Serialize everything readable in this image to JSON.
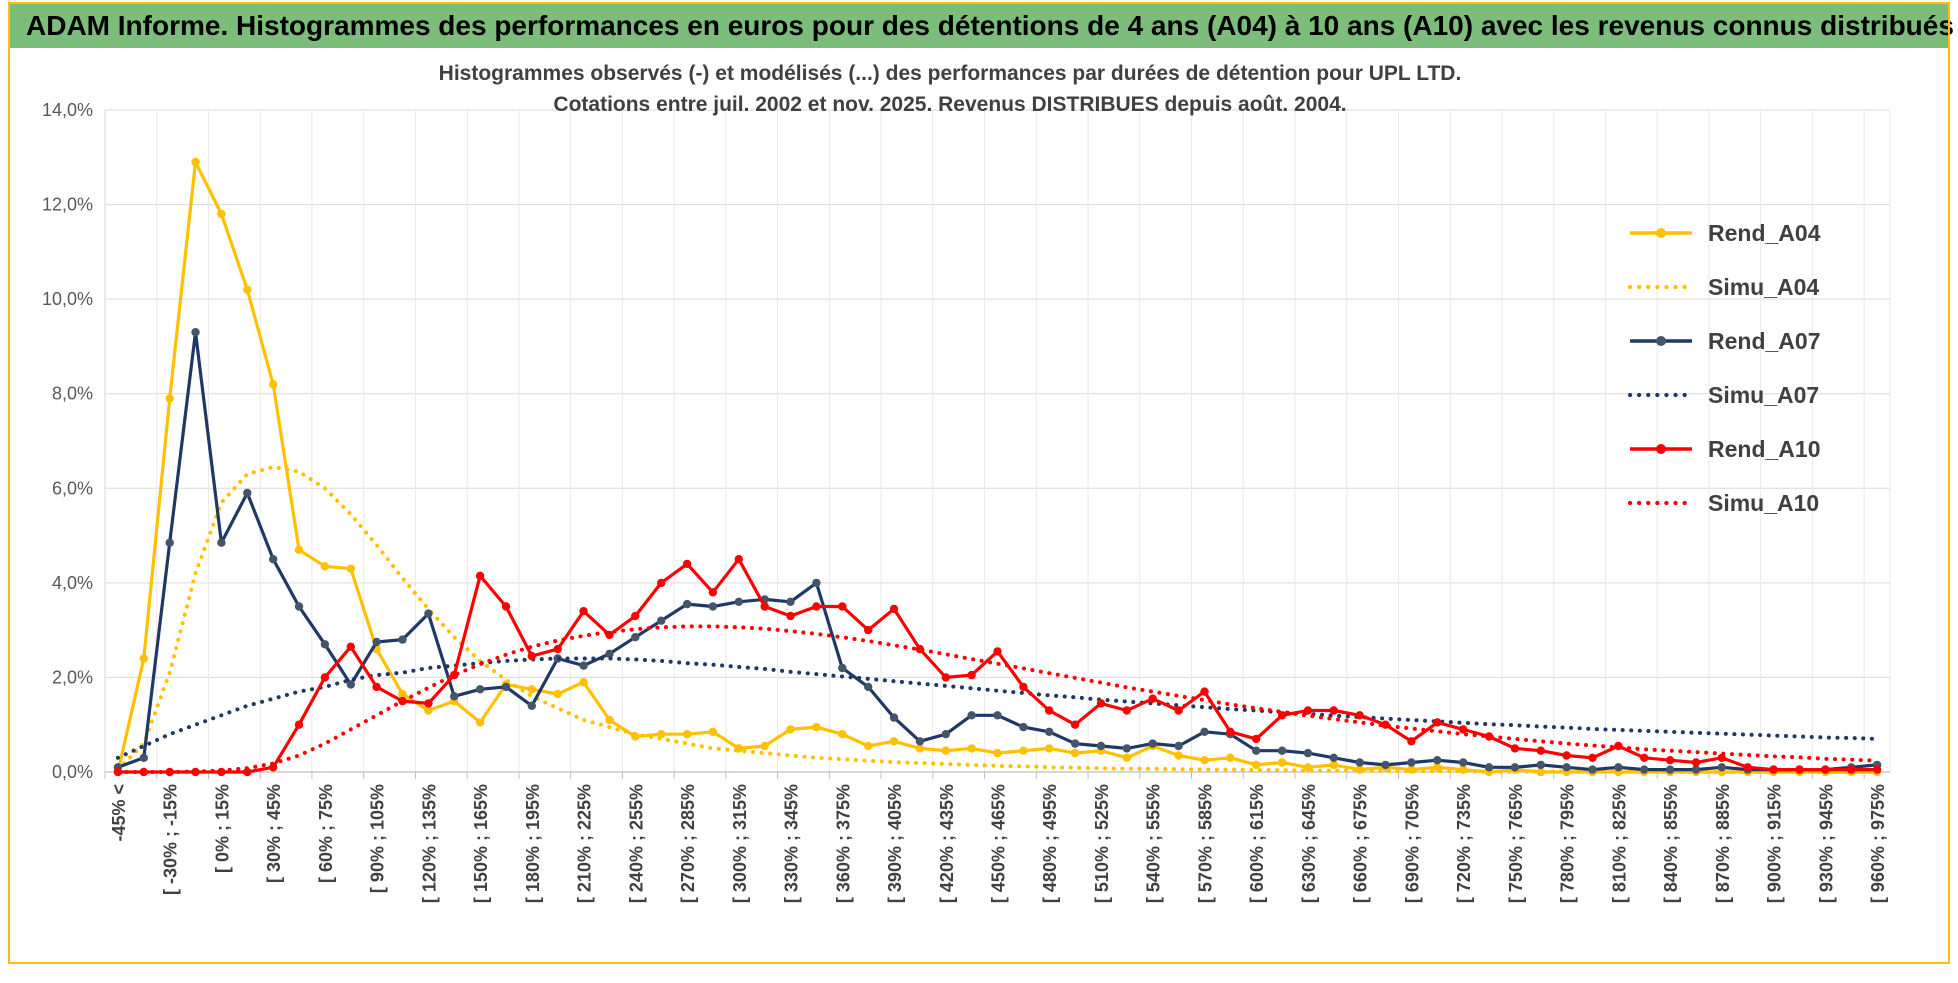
{
  "header": {
    "title": "ADAM Informe. Histogrammes des performances en euros pour des détentions de 4 ans (A04) à 10 ans (A10) avec les revenus connus distribués"
  },
  "colors": {
    "header_bg": "#7CBD7C",
    "header_text": "#000000",
    "frame": "#FFC000",
    "grid": "#D9D9D9",
    "grid_vertical": "#E9E9E9",
    "axis": "#BFBFBF",
    "tick_text": "#595959",
    "x_label_text": "#404040",
    "title_text": "#404040",
    "gold": "#FFC000",
    "navy": "#1F3864",
    "red": "#FF0000"
  },
  "chart_data": {
    "type": "line",
    "title_line1": "Histogrammes observés (-) et modélisés (...) des performances par durées de détention pour UPL LTD.",
    "title_line2": "Cotations entre juil. 2002 et nov. 2025. Revenus DISTRIBUES depuis août. 2004.",
    "ylim": [
      0,
      14
    ],
    "y_ticks": [
      "0,0%",
      "2,0%",
      "4,0%",
      "6,0%",
      "8,0%",
      "10,0%",
      "12,0%",
      "14,0%"
    ],
    "grid": true,
    "legend_position": "right-inside",
    "n_bins": 69,
    "label_every": 2,
    "bin_width_note": "15% wide performance bins, one x tick label every second bin",
    "x_tick_labels": [
      "-45% <",
      "[ -30% ; -15%",
      "[ 0% ; 15%",
      "[ 30% ; 45%",
      "[ 60% ; 75%",
      "[ 90% ; 105%",
      "[ 120% ; 135%",
      "[ 150% ; 165%",
      "[ 180% ; 195%",
      "[ 210% ; 225%",
      "[ 240% ; 255%",
      "[ 270% ; 285%",
      "[ 300% ; 315%",
      "[ 330% ; 345%",
      "[ 360% ; 375%",
      "[ 390% ; 405%",
      "[ 420% ; 435%",
      "[ 450% ; 465%",
      "[ 480% ; 495%",
      "[ 510% ; 525%",
      "[ 540% ; 555%",
      "[ 570% ; 585%",
      "[ 600% ; 615%",
      "[ 630% ; 645%",
      "[ 660% ; 675%",
      "[ 690% ; 705%",
      "[ 720% ; 735%",
      "[ 750% ; 765%",
      "[ 780% ; 795%",
      "[ 810% ; 825%",
      "[ 840% ; 855%",
      "[ 870% ; 885%",
      "[ 900% ; 915%",
      "[ 930% ; 945%",
      "[ 960% ; 975%"
    ],
    "series": [
      {
        "name": "Rend_A04",
        "style": "solid",
        "marker": true,
        "color": "#FFC000",
        "marker_color": "#FFC000",
        "values": [
          0,
          2.4,
          7.9,
          12.9,
          11.8,
          10.2,
          8.2,
          4.7,
          4.35,
          4.3,
          2.6,
          1.65,
          1.3,
          1.5,
          1.05,
          1.85,
          1.75,
          1.65,
          1.9,
          1.1,
          0.75,
          0.8,
          0.8,
          0.85,
          0.5,
          0.55,
          0.9,
          0.95,
          0.8,
          0.55,
          0.65,
          0.5,
          0.45,
          0.5,
          0.4,
          0.45,
          0.5,
          0.4,
          0.45,
          0.3,
          0.55,
          0.35,
          0.25,
          0.3,
          0.15,
          0.2,
          0.1,
          0.15,
          0.05,
          0.1,
          0.05,
          0.1,
          0.05,
          0,
          0.05,
          0,
          0,
          0,
          0,
          0,
          0,
          0,
          0,
          0,
          0,
          0,
          0,
          0,
          0
        ]
      },
      {
        "name": "Simu_A04",
        "style": "dotted",
        "marker": false,
        "color": "#FFC000",
        "marker_color": "#FFC000",
        "values": [
          0.05,
          0.6,
          2.1,
          4.2,
          5.7,
          6.3,
          6.45,
          6.35,
          6.0,
          5.45,
          4.8,
          4.1,
          3.45,
          2.85,
          2.35,
          1.95,
          1.6,
          1.35,
          1.1,
          0.95,
          0.8,
          0.7,
          0.6,
          0.5,
          0.45,
          0.4,
          0.35,
          0.3,
          0.27,
          0.24,
          0.21,
          0.19,
          0.17,
          0.15,
          0.13,
          0.12,
          0.1,
          0.09,
          0.08,
          0.07,
          0.07,
          0.06,
          0.05,
          0.05,
          0.04,
          0.04,
          0.03,
          0.03,
          0.03,
          0.02,
          0.02,
          0.02,
          0.02,
          0.01,
          0.01,
          0.01,
          0.01,
          0.01,
          0.01,
          0.01,
          0,
          0,
          0,
          0,
          0,
          0,
          0,
          0,
          0
        ]
      },
      {
        "name": "Rend_A07",
        "style": "solid",
        "marker": true,
        "color": "#1F3864",
        "marker_color": "#44546A",
        "values": [
          0.1,
          0.3,
          4.85,
          9.3,
          4.85,
          5.9,
          4.5,
          3.5,
          2.7,
          1.85,
          2.75,
          2.8,
          3.35,
          1.6,
          1.75,
          1.8,
          1.4,
          2.4,
          2.25,
          2.5,
          2.85,
          3.2,
          3.55,
          3.5,
          3.6,
          3.65,
          3.6,
          4.0,
          2.2,
          1.8,
          1.15,
          0.65,
          0.8,
          1.2,
          1.2,
          0.95,
          0.85,
          0.6,
          0.55,
          0.5,
          0.6,
          0.55,
          0.85,
          0.8,
          0.45,
          0.45,
          0.4,
          0.3,
          0.2,
          0.15,
          0.2,
          0.25,
          0.2,
          0.1,
          0.1,
          0.15,
          0.1,
          0.05,
          0.1,
          0.05,
          0.05,
          0.05,
          0.1,
          0.05,
          0.05,
          0.05,
          0.05,
          0.1,
          0.15
        ]
      },
      {
        "name": "Simu_A07",
        "style": "dotted",
        "marker": false,
        "color": "#1F3864",
        "marker_color": "#1F3864",
        "values": [
          0.3,
          0.55,
          0.8,
          1.0,
          1.2,
          1.4,
          1.55,
          1.7,
          1.8,
          1.95,
          2.05,
          2.1,
          2.2,
          2.25,
          2.3,
          2.35,
          2.38,
          2.4,
          2.4,
          2.4,
          2.38,
          2.35,
          2.3,
          2.27,
          2.22,
          2.18,
          2.12,
          2.07,
          2.02,
          1.97,
          1.92,
          1.87,
          1.82,
          1.77,
          1.72,
          1.67,
          1.62,
          1.58,
          1.53,
          1.49,
          1.45,
          1.41,
          1.37,
          1.33,
          1.3,
          1.26,
          1.23,
          1.19,
          1.16,
          1.13,
          1.1,
          1.07,
          1.04,
          1.01,
          0.99,
          0.96,
          0.94,
          0.91,
          0.89,
          0.87,
          0.85,
          0.83,
          0.81,
          0.79,
          0.77,
          0.75,
          0.73,
          0.72,
          0.7
        ]
      },
      {
        "name": "Rend_A10",
        "style": "solid",
        "marker": true,
        "color": "#FF0000",
        "marker_color": "#FF0000",
        "values": [
          0,
          0,
          0,
          0,
          0,
          0,
          0.1,
          1.0,
          2.0,
          2.65,
          1.8,
          1.5,
          1.45,
          2.05,
          4.15,
          3.5,
          2.45,
          2.6,
          3.4,
          2.9,
          3.3,
          4.0,
          4.4,
          3.8,
          4.5,
          3.5,
          3.3,
          3.5,
          3.5,
          3.0,
          3.45,
          2.6,
          2.0,
          2.05,
          2.55,
          1.8,
          1.3,
          1.0,
          1.45,
          1.3,
          1.55,
          1.3,
          1.7,
          0.85,
          0.7,
          1.2,
          1.3,
          1.3,
          1.2,
          1.0,
          0.65,
          1.05,
          0.9,
          0.75,
          0.5,
          0.45,
          0.35,
          0.3,
          0.55,
          0.3,
          0.25,
          0.2,
          0.3,
          0.1,
          0.05,
          0.05,
          0.05,
          0.05,
          0.05
        ]
      },
      {
        "name": "Simu_A10",
        "style": "dotted",
        "marker": false,
        "color": "#FF0000",
        "marker_color": "#FF0000",
        "values": [
          0,
          0,
          0,
          0.01,
          0.03,
          0.08,
          0.18,
          0.35,
          0.6,
          0.9,
          1.2,
          1.5,
          1.78,
          2.05,
          2.28,
          2.48,
          2.65,
          2.78,
          2.88,
          2.96,
          3.02,
          3.06,
          3.08,
          3.08,
          3.06,
          3.03,
          2.98,
          2.92,
          2.85,
          2.77,
          2.68,
          2.59,
          2.49,
          2.39,
          2.29,
          2.19,
          2.09,
          1.99,
          1.89,
          1.79,
          1.7,
          1.61,
          1.52,
          1.43,
          1.35,
          1.27,
          1.19,
          1.12,
          1.05,
          0.98,
          0.92,
          0.86,
          0.8,
          0.75,
          0.7,
          0.65,
          0.6,
          0.56,
          0.52,
          0.48,
          0.45,
          0.42,
          0.39,
          0.36,
          0.33,
          0.31,
          0.28,
          0.26,
          0.24
        ]
      }
    ],
    "legend": [
      "Rend_A04",
      "Simu_A04",
      "Rend_A07",
      "Simu_A07",
      "Rend_A10",
      "Simu_A10"
    ]
  }
}
